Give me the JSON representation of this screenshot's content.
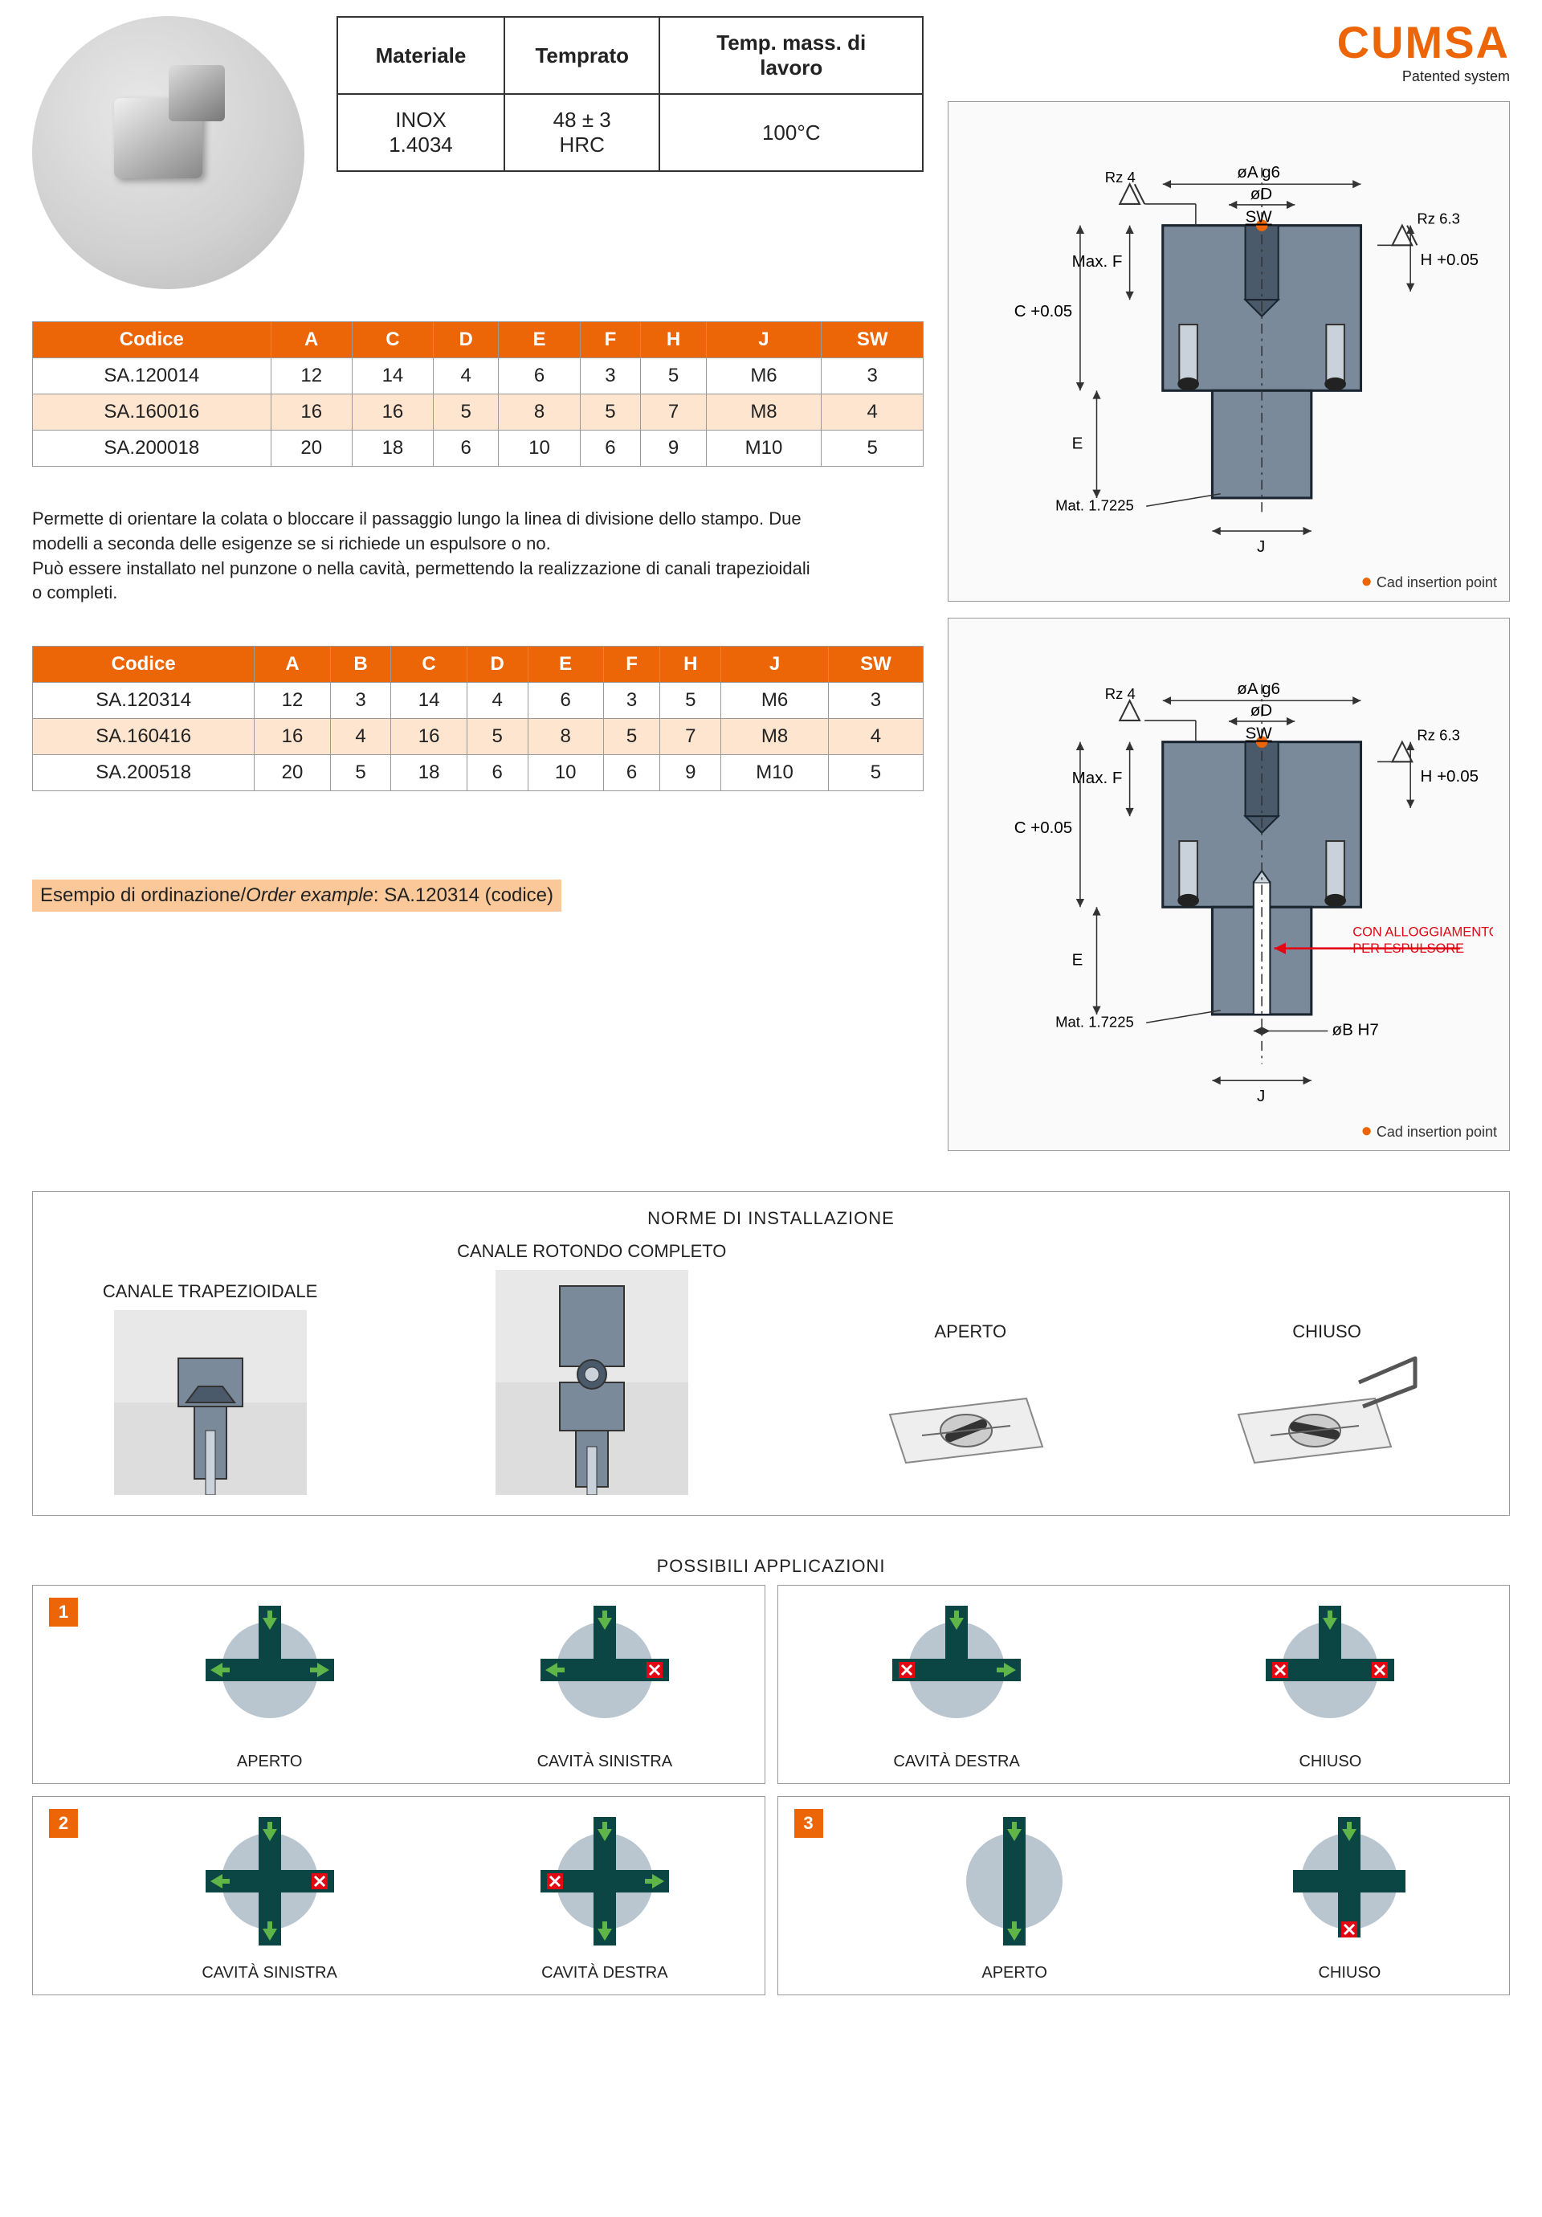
{
  "brand": {
    "name": "CUMSA",
    "tagline": "Patented system"
  },
  "materialTable": {
    "headers": [
      "Materiale",
      "Temprato",
      "Temp. mass. di lavoro"
    ],
    "row": [
      "INOX 1.4034",
      "48 ± 3 HRC",
      "100°C"
    ]
  },
  "table1": {
    "headers": [
      "Codice",
      "A",
      "C",
      "D",
      "E",
      "F",
      "H",
      "J",
      "SW"
    ],
    "rows": [
      [
        "SA.120014",
        "12",
        "14",
        "4",
        "6",
        "3",
        "5",
        "M6",
        "3"
      ],
      [
        "SA.160016",
        "16",
        "16",
        "5",
        "8",
        "5",
        "7",
        "M8",
        "4"
      ],
      [
        "SA.200018",
        "20",
        "18",
        "6",
        "10",
        "6",
        "9",
        "M10",
        "5"
      ]
    ],
    "shaded": [
      1
    ]
  },
  "description": "Permette di orientare la colata o bloccare il passaggio lungo la linea di divisione dello stampo. Due modelli a seconda delle esigenze se si richiede un espulsore o no.\nPuò essere installato nel punzone o nella cavità, permettendo la realizzazione di canali trapezioidali o completi.",
  "table2": {
    "headers": [
      "Codice",
      "A",
      "B",
      "C",
      "D",
      "E",
      "F",
      "H",
      "J",
      "SW"
    ],
    "rows": [
      [
        "SA.120314",
        "12",
        "3",
        "14",
        "4",
        "6",
        "3",
        "5",
        "M6",
        "3"
      ],
      [
        "SA.160416",
        "16",
        "4",
        "16",
        "5",
        "8",
        "5",
        "7",
        "M8",
        "4"
      ],
      [
        "SA.200518",
        "20",
        "5",
        "18",
        "6",
        "10",
        "6",
        "9",
        "M10",
        "5"
      ]
    ],
    "shaded": [
      1
    ]
  },
  "orderExample": {
    "label": "Esempio di ordinazione/",
    "italic": "Order example",
    "value": ": SA.120314 (codice)"
  },
  "diagram": {
    "labels": {
      "oA": "øA g6",
      "oD": "øD",
      "SW": "SW",
      "oB": "øB H7",
      "Rz4": "Rz 4",
      "Rz63": "Rz 6.3",
      "maxF": "Max. F",
      "C": "C +0.05",
      "H": "H +0.05",
      "E": "E",
      "J": "J",
      "mat": "Mat. 1.7225",
      "ejector": "CON ALLOGGIAMENTO PER ESPULSORE",
      "cadNote": "Cad insertion point"
    }
  },
  "install": {
    "title": "NORME DI INSTALLAZIONE",
    "trap": "CANALE TRAPEZIOIDALE",
    "round": "CANALE ROTONDO COMPLETO",
    "open": "APERTO",
    "closed": "CHIUSO"
  },
  "apps": {
    "title": "POSSIBILI APPLICAZIONI",
    "labels": {
      "open": "APERTO",
      "leftCav": "CAVITÀ SINISTRA",
      "rightCav": "CAVITÀ DESTRA",
      "closed": "CHIUSO"
    }
  },
  "colors": {
    "orange": "#ec6608",
    "peach": "#fde5d0",
    "steel": "#7a8a9a",
    "darkSteel": "#4a5a6a",
    "green": "#5fb548",
    "red": "#e30613",
    "teal": "#0b4645"
  }
}
